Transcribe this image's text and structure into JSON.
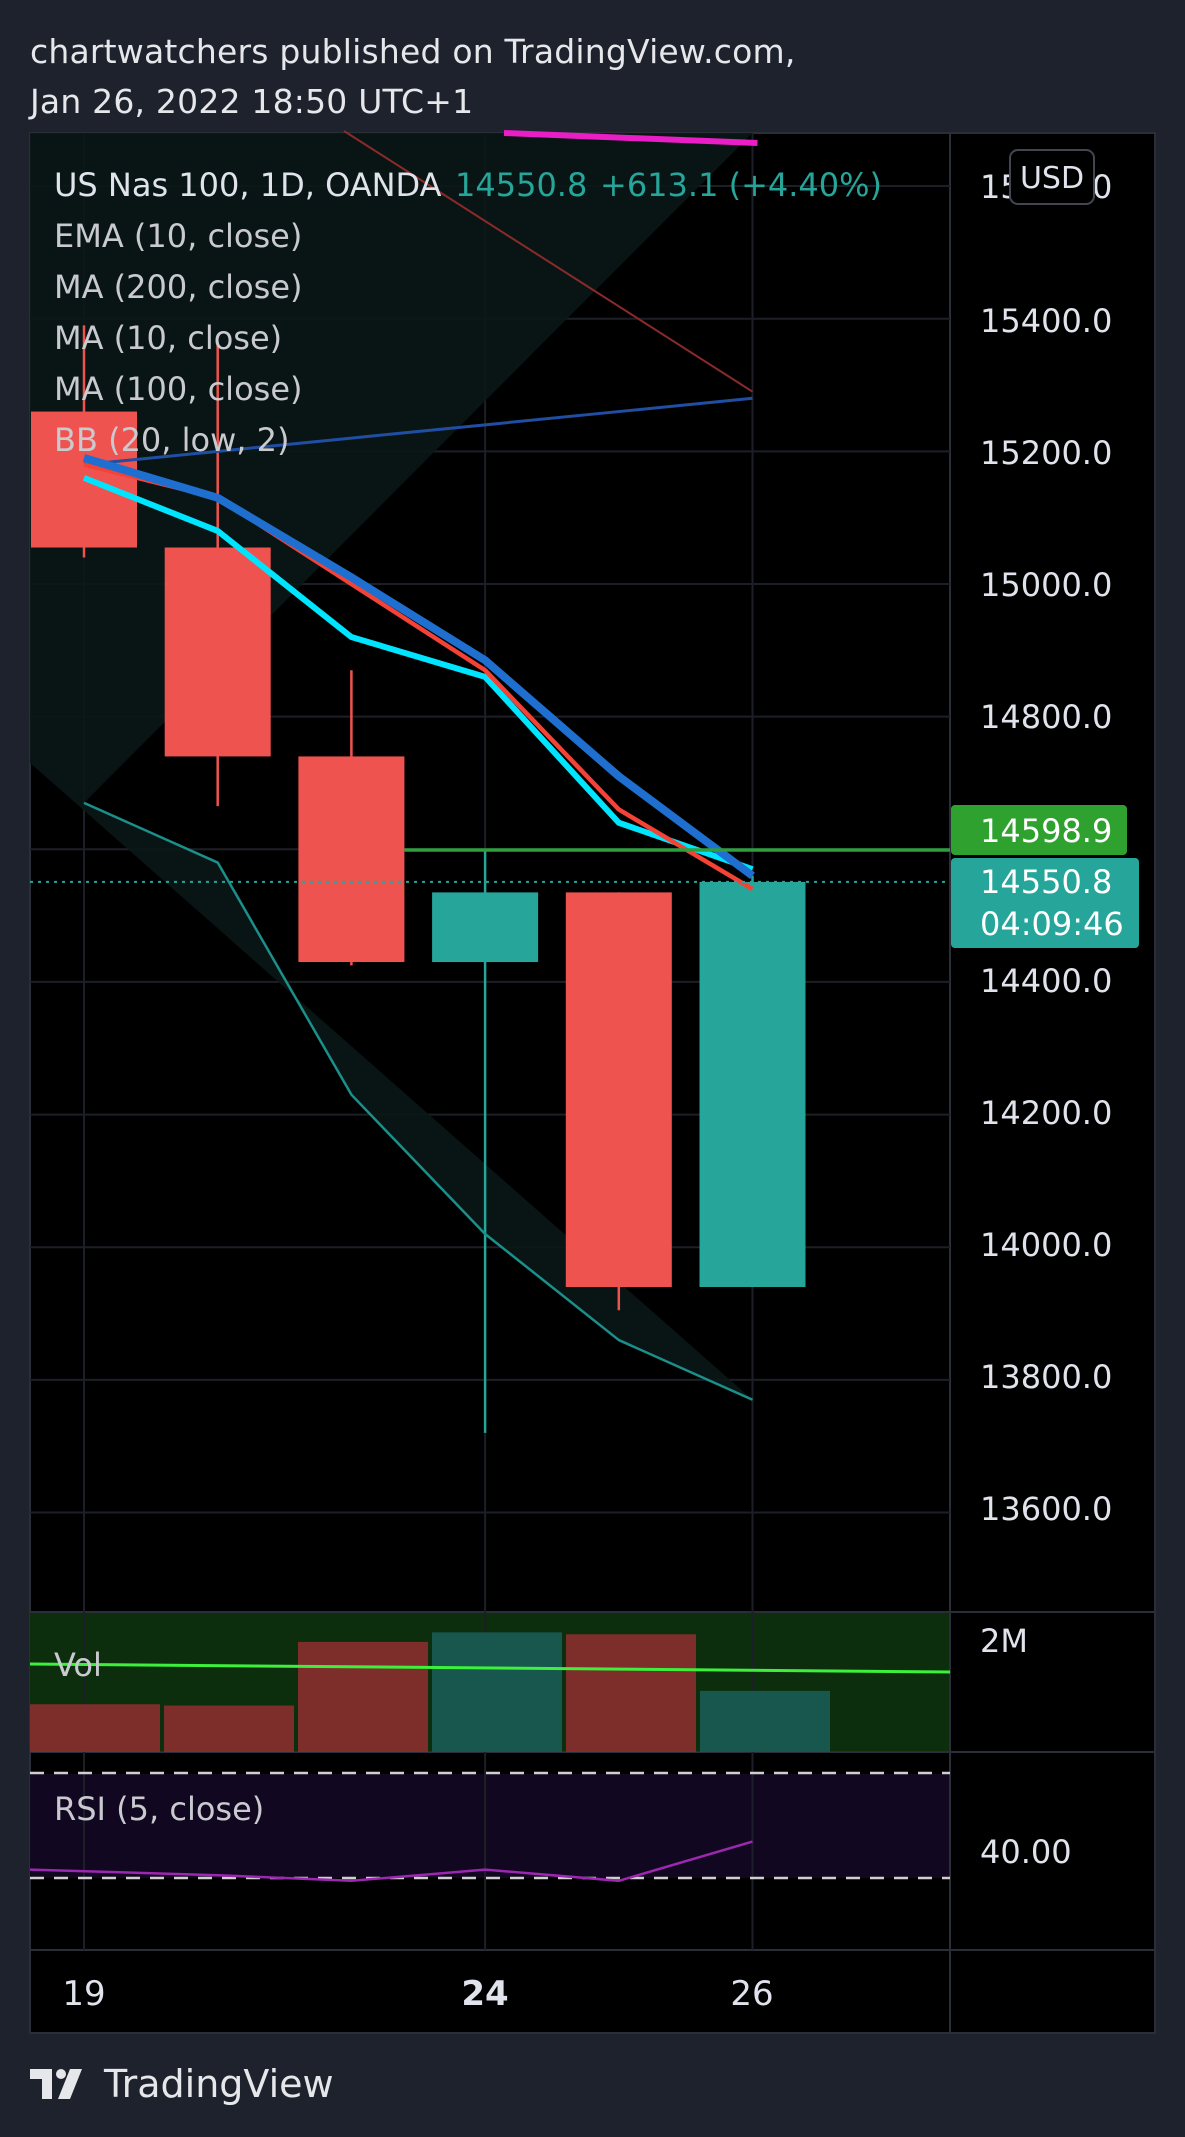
{
  "header": {
    "published_line": "chartwatchers published on TradingView.com,",
    "date_line": "Jan 26, 2022 18:50 UTC+1"
  },
  "legend": {
    "symbol": "US Nas 100, 1D, OANDA",
    "price": "14550.8",
    "change": "+613.1 (+4.40%)",
    "indicators": [
      "EMA (10, close)",
      "MA (200, close)",
      "MA (10, close)",
      "MA (100, close)",
      "BB (20, low, 2)"
    ]
  },
  "currency_button": "USD",
  "price_axis_labels": [
    "15600.0",
    "15400.0",
    "15200.0",
    "15000.0",
    "14800.0",
    "14400.0",
    "14200.0",
    "14000.0",
    "13800.0",
    "13600.0"
  ],
  "price_tags": {
    "high_line": "14598.9",
    "last_price": "14550.8",
    "countdown": "04:09:46"
  },
  "volume_pane": {
    "label": "Vol",
    "axis_label": "2M"
  },
  "rsi_pane": {
    "label": "RSI (5, close)",
    "axis_label": "40.00"
  },
  "x_axis_labels": [
    "19",
    "24",
    "26"
  ],
  "footer": {
    "brand": "TradingView"
  },
  "colors": {
    "up": "#26a69a",
    "down": "#ef5350",
    "ema10": "#1e6fd0",
    "ma200": "#1f4ea3",
    "ma10": "#f44336",
    "ma100": "#00e5ff",
    "bb": "#1b8f8a",
    "rsi": "#9c27b0",
    "high_line": "#2e9e3e"
  },
  "chart_data": {
    "type": "candlestick",
    "symbol": "US Nas 100",
    "interval": "1D",
    "candles": [
      {
        "date": "Jan 19",
        "open": 15260,
        "high": 15390,
        "low": 15040,
        "close": 15055,
        "volume": 750000
      },
      {
        "date": "Jan 20",
        "open": 15055,
        "high": 15365,
        "low": 14665,
        "close": 14740,
        "volume": 730000
      },
      {
        "date": "Jan 21",
        "open": 14740,
        "high": 14870,
        "low": 14425,
        "close": 14430,
        "volume": 1730000
      },
      {
        "date": "Jan 24",
        "open": 14430,
        "high": 14600,
        "low": 13720,
        "close": 14535,
        "volume": 1880000
      },
      {
        "date": "Jan 25",
        "open": 14535,
        "high": 14535,
        "low": 13905,
        "close": 13940,
        "volume": 1850000
      },
      {
        "date": "Jan 26",
        "open": 13940,
        "high": 14560,
        "low": 13940,
        "close": 14550.8,
        "volume": 960000
      }
    ],
    "ema10": [
      15190,
      15130,
      15010,
      14885,
      14710,
      14560
    ],
    "ma10": [
      15180,
      15130,
      15000,
      14870,
      14660,
      14540
    ],
    "ma200": [
      15180,
      15200,
      15220,
      15240,
      15260,
      15280
    ],
    "ma100": [
      15160,
      15080,
      14920,
      14860,
      14640,
      14570
    ],
    "bb_lower": [
      14670,
      14580,
      14230,
      14020,
      13860,
      13770
    ],
    "rsi": [
      33,
      31,
      29,
      33,
      29,
      43
    ],
    "y_range": [
      13450,
      15680
    ],
    "high_line": 14598.9,
    "last_price": 14550.8
  }
}
